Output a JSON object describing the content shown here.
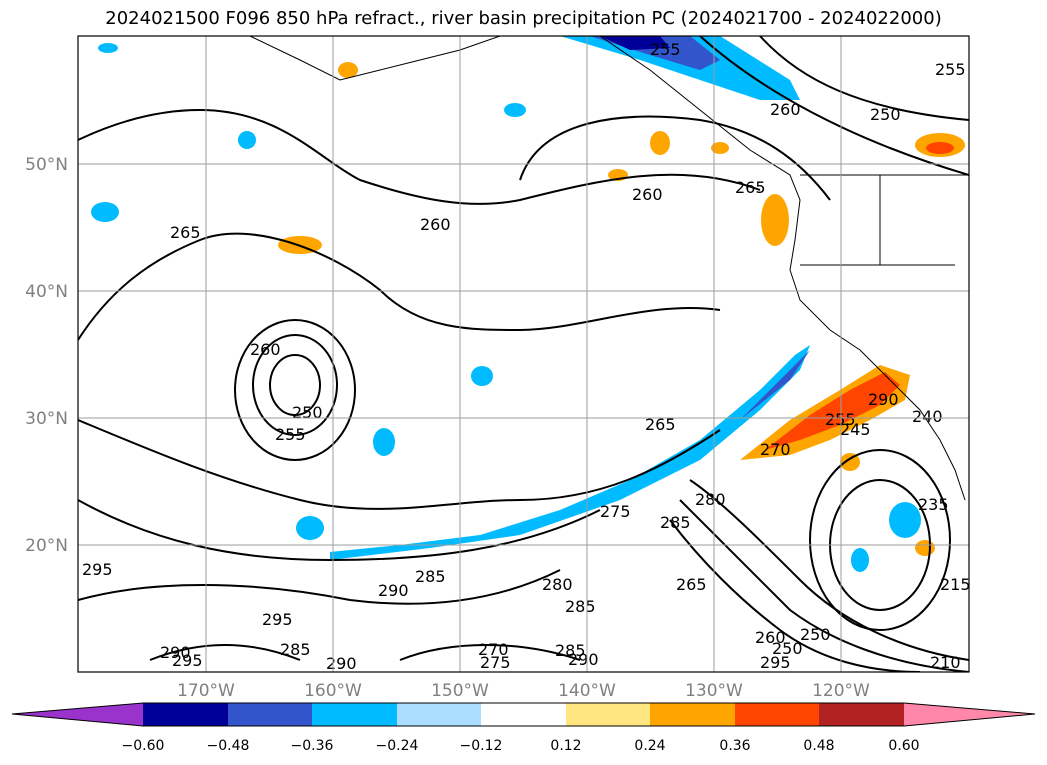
{
  "title": "2024021500 F096 850 hPa refract., river basin precipitation PC (2024021700 - 2024022000)",
  "map": {
    "lat_labels": [
      "50°N",
      "40°N",
      "30°N",
      "20°N"
    ],
    "lon_labels": [
      "170°W",
      "160°W",
      "150°W",
      "140°W",
      "130°W",
      "120°W"
    ],
    "contour_labels": [
      "265",
      "260",
      "260",
      "255",
      "250",
      "260",
      "265",
      "275",
      "285",
      "280",
      "270",
      "265",
      "260",
      "250",
      "255",
      "240",
      "245",
      "290",
      "285",
      "290",
      "295",
      "285",
      "290",
      "295",
      "295",
      "270",
      "275",
      "290",
      "285",
      "280",
      "235",
      "215",
      "250",
      "255",
      "260",
      "265",
      "290",
      "295",
      "210",
      "285",
      "250",
      "255"
    ]
  },
  "colorbar": {
    "colors": [
      "#9933cc",
      "#000099",
      "#3355cc",
      "#00bbff",
      "#aaddff",
      "#ffffff",
      "#ffe680",
      "#ffa500",
      "#ff4500",
      "#b22222",
      "#ff88aa"
    ],
    "ticks": [
      "−0.60",
      "−0.48",
      "−0.36",
      "−0.24",
      "−0.12",
      "0.12",
      "0.24",
      "0.36",
      "0.48",
      "0.60"
    ]
  }
}
